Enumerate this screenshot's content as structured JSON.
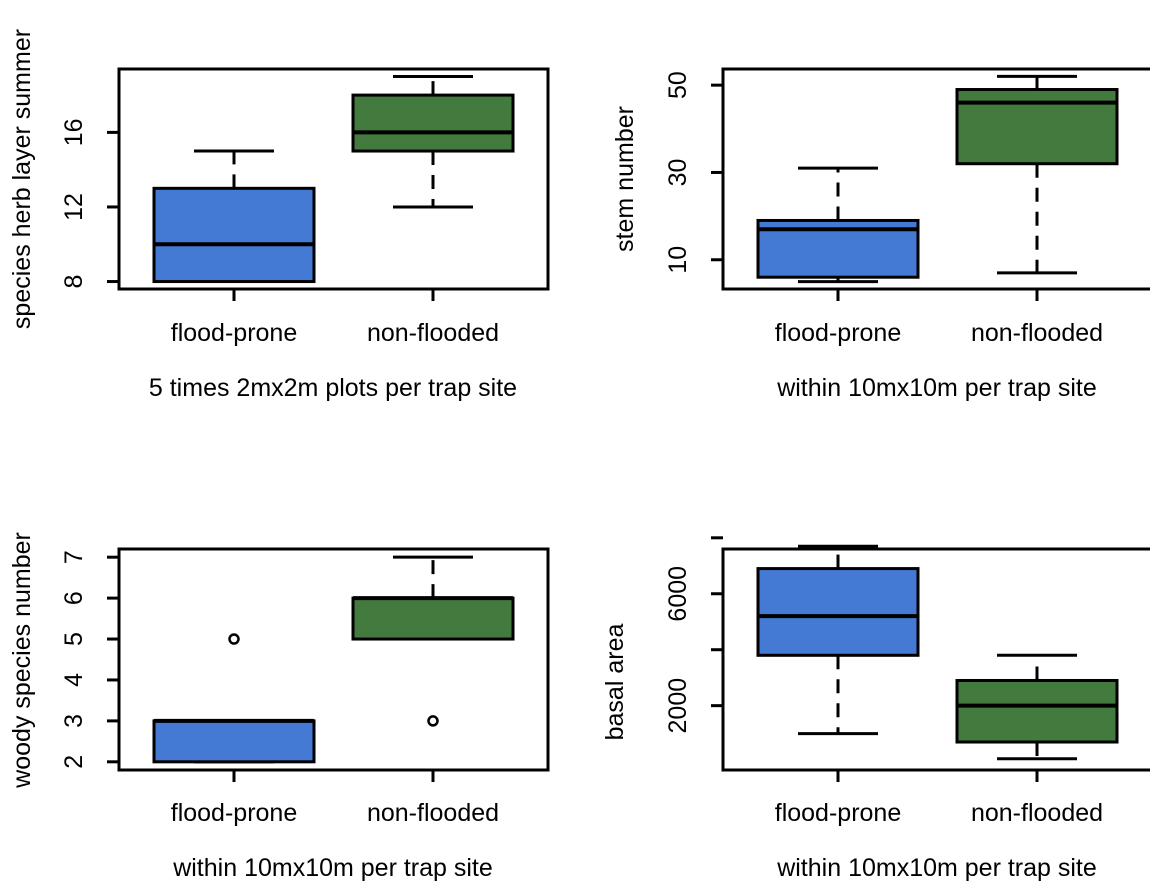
{
  "colors": {
    "flood_prone": "#4479d4",
    "non_flooded": "#437a3e",
    "stroke": "#000000"
  },
  "chart_data": [
    {
      "type": "box",
      "ylabel": "species herb layer summer",
      "xlabel": "5 times 2mx2m plots per trap site",
      "categories": [
        "flood-prone",
        "non-flooded"
      ],
      "ylim": [
        7.6,
        19.4
      ],
      "yticks": [
        8,
        12,
        16
      ],
      "ytick_labels": [
        "8",
        "12",
        "16"
      ],
      "series": [
        {
          "whisker_low": 8,
          "q1": 8,
          "median": 10,
          "q3": 13,
          "whisker_high": 15,
          "outliers": []
        },
        {
          "whisker_low": 12,
          "q1": 15,
          "median": 16,
          "q3": 18,
          "whisker_high": 19,
          "outliers": []
        }
      ]
    },
    {
      "type": "box",
      "ylabel": "stem number",
      "xlabel": "within 10mx10m per trap site",
      "categories": [
        "flood-prone",
        "non-flooded"
      ],
      "ylim": [
        3.3,
        53.7
      ],
      "yticks": [
        10,
        30,
        50
      ],
      "ytick_labels": [
        "10",
        "30",
        "50"
      ],
      "series": [
        {
          "whisker_low": 5,
          "q1": 6,
          "median": 17,
          "q3": 19,
          "whisker_high": 31,
          "outliers": []
        },
        {
          "whisker_low": 7,
          "q1": 32,
          "median": 46,
          "q3": 49,
          "whisker_high": 52,
          "outliers": []
        }
      ]
    },
    {
      "type": "box",
      "ylabel": "woody species number",
      "xlabel": "within 10mx10m per trap site",
      "categories": [
        "flood-prone",
        "non-flooded"
      ],
      "ylim": [
        1.8,
        7.2
      ],
      "yticks": [
        2,
        3,
        4,
        5,
        6,
        7
      ],
      "ytick_labels": [
        "2",
        "3",
        "4",
        "5",
        "6",
        "7"
      ],
      "series": [
        {
          "whisker_low": 2,
          "q1": 2,
          "median": 3,
          "q3": 3,
          "whisker_high": 3,
          "outliers": [
            5
          ]
        },
        {
          "whisker_low": 5,
          "q1": 5,
          "median": 6,
          "q3": 6,
          "whisker_high": 7,
          "outliers": [
            3
          ]
        }
      ]
    },
    {
      "type": "box",
      "ylabel": "basal area",
      "xlabel": "within 10mx10m per trap site",
      "categories": [
        "flood-prone",
        "non-flooded"
      ],
      "ylim": [
        -300,
        7600
      ],
      "yticks": [
        2000,
        6000
      ],
      "ytick_labels": [
        "2000",
        "6000"
      ],
      "minor_yticks": [
        4000,
        8000
      ],
      "series": [
        {
          "whisker_low": 1000,
          "q1": 3800,
          "median": 5200,
          "q3": 6900,
          "whisker_high": 7700,
          "outliers": []
        },
        {
          "whisker_low": 100,
          "q1": 700,
          "median": 2000,
          "q3": 2900,
          "whisker_high": 3800,
          "outliers": []
        }
      ]
    }
  ]
}
